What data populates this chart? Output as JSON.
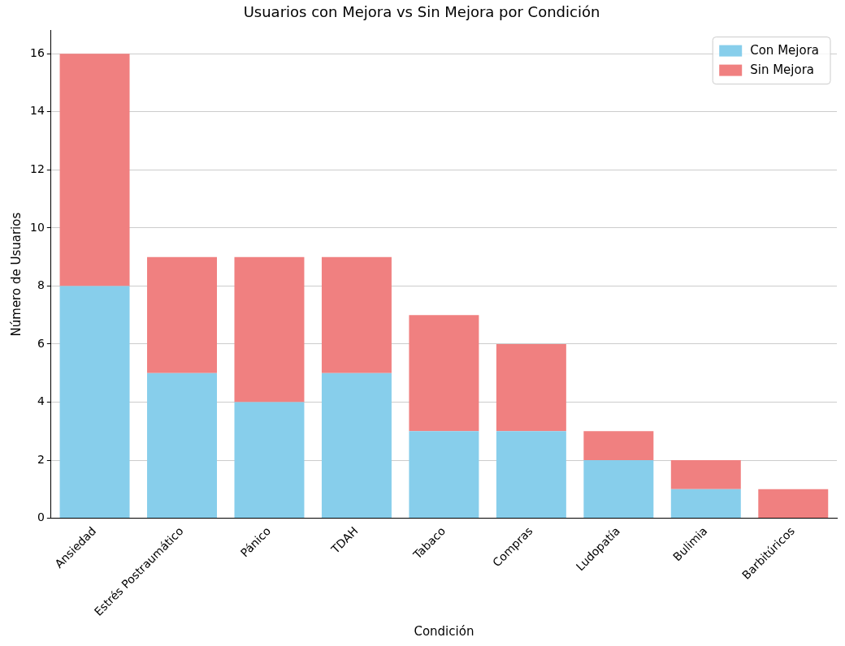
{
  "chart_data": {
    "type": "bar",
    "title": "Usuarios con Mejora vs Sin Mejora por Condición",
    "xlabel": "Condición",
    "ylabel": "Número de Usuarios",
    "categories": [
      "Ansiedad",
      "Estrés Postraumático",
      "Pánico",
      "TDAH",
      "Tabaco",
      "Compras",
      "Ludopatía",
      "Bulimia",
      "Barbitúricos"
    ],
    "series": [
      {
        "name": "Con Mejora",
        "color": "#87ceeb",
        "values": [
          8,
          5,
          4,
          5,
          3,
          3,
          2,
          1,
          0
        ]
      },
      {
        "name": "Sin Mejora",
        "color": "#f08080",
        "values": [
          8,
          4,
          5,
          4,
          4,
          3,
          1,
          1,
          1
        ]
      }
    ],
    "stacked": true,
    "ylim": [
      0,
      16.8
    ],
    "yticks": [
      0,
      2,
      4,
      6,
      8,
      10,
      12,
      14,
      16
    ],
    "grid": "y",
    "legend": "top right"
  }
}
